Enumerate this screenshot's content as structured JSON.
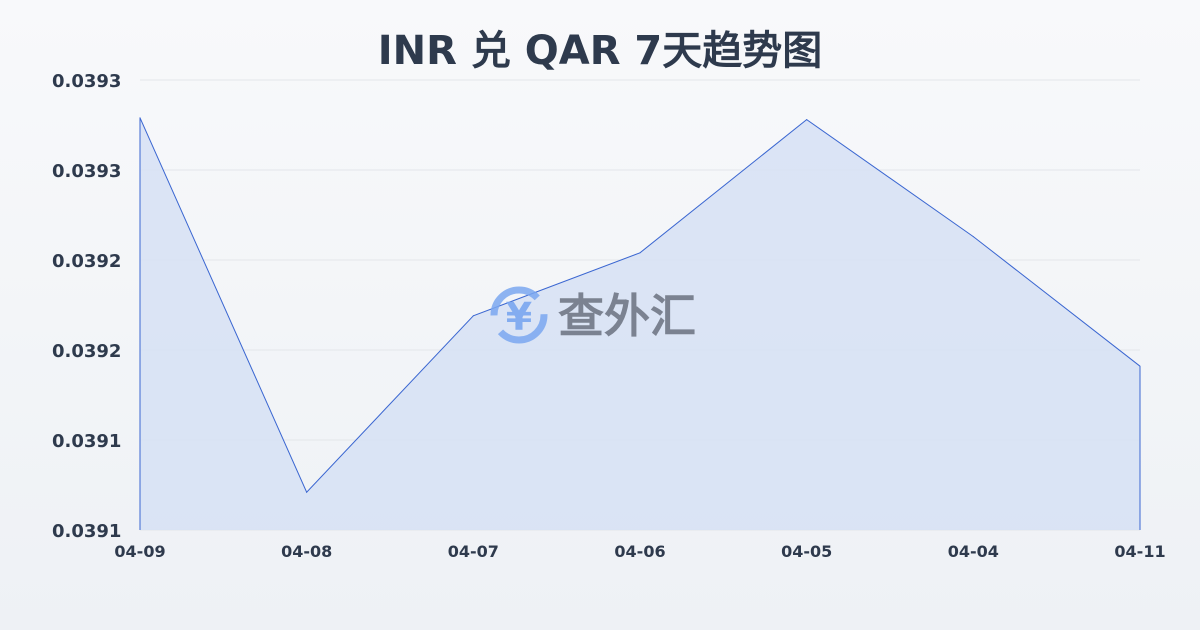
{
  "chart_data": {
    "type": "area",
    "title": "INR 兑 QAR 7天趋势图",
    "xlabel": "",
    "ylabel": "",
    "categories": [
      "04-09",
      "04-08",
      "04-07",
      "04-06",
      "04-05",
      "04-04",
      "04-11"
    ],
    "series": [
      {
        "values": [
          0.039279,
          0.039071,
          0.039169,
          0.039204,
          0.039278,
          0.039213,
          0.039141
        ]
      }
    ],
    "ylim": [
      0.03905,
      0.0393
    ],
    "yticks": [
      0.0393,
      0.03925,
      0.0392,
      0.03915,
      0.0391,
      0.03905
    ],
    "ytick_labels": [
      "0.0393",
      "0.0393",
      "0.0392",
      "0.0392",
      "0.0391",
      "0.0391"
    ],
    "grid": true,
    "colors": {
      "line": "#3a66d1",
      "fill": "#d6e1f5",
      "grid": "#e3e6ea",
      "text": "#2e3a4d"
    }
  },
  "watermark": {
    "text": "查外汇",
    "icon": "yen-exchange-icon",
    "color": "#7aa7f0"
  }
}
